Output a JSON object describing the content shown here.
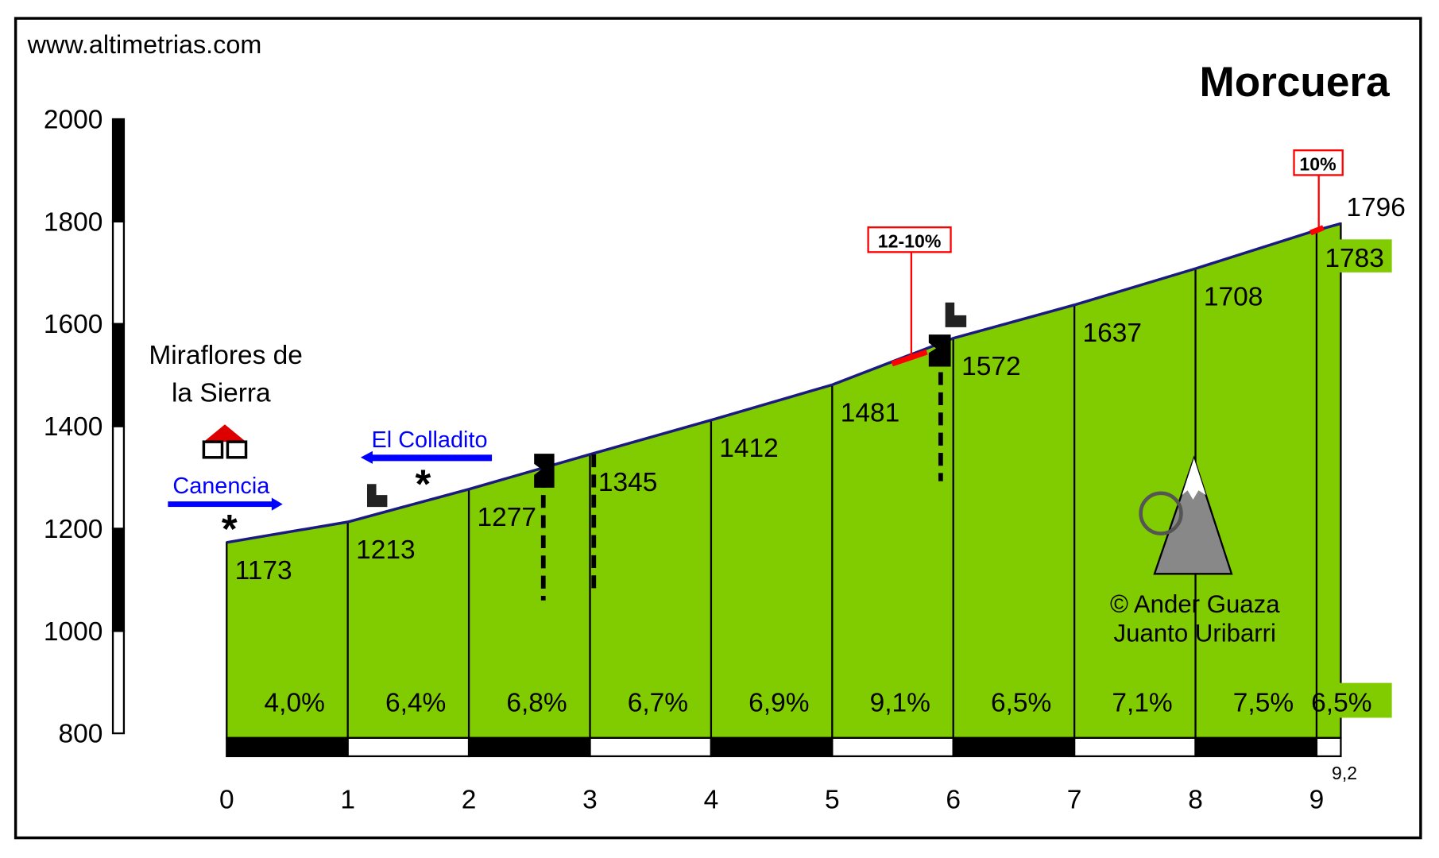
{
  "chart_data": {
    "type": "area",
    "site": "www.altimetrias.com",
    "title": "Morcuera",
    "x": [
      0,
      1,
      2,
      3,
      4,
      5,
      6,
      7,
      8,
      9,
      9.2
    ],
    "values": [
      1173,
      1213,
      1277,
      1345,
      1412,
      1481,
      1572,
      1637,
      1708,
      1783,
      1796
    ],
    "color": "#80cc00",
    "line_color": "#1a1a80",
    "xlim": [
      0,
      9.2
    ],
    "xticks": [
      0,
      1,
      2,
      3,
      4,
      5,
      6,
      7,
      8,
      9,
      {
        "value": 9.2,
        "label": "9,2"
      }
    ],
    "ylim": [
      800,
      2000
    ],
    "yticks": [
      800,
      1000,
      1200,
      1400,
      1600,
      1800,
      2000
    ],
    "gradients": [
      "4,0%",
      "6,4%",
      "6,8%",
      "6,7%",
      "6,9%",
      "9,1%",
      "6,5%",
      "7,1%",
      "7,5%",
      "6,5%"
    ],
    "annotations": {
      "start": [
        "Miraflores de",
        "la Sierra"
      ],
      "canencia": "Canencia",
      "colladito": "El Colladito",
      "steep1": "12-10%",
      "steep2": "10%",
      "credit": [
        "© Ander Guaza",
        "Juanto Uribarri"
      ]
    }
  }
}
